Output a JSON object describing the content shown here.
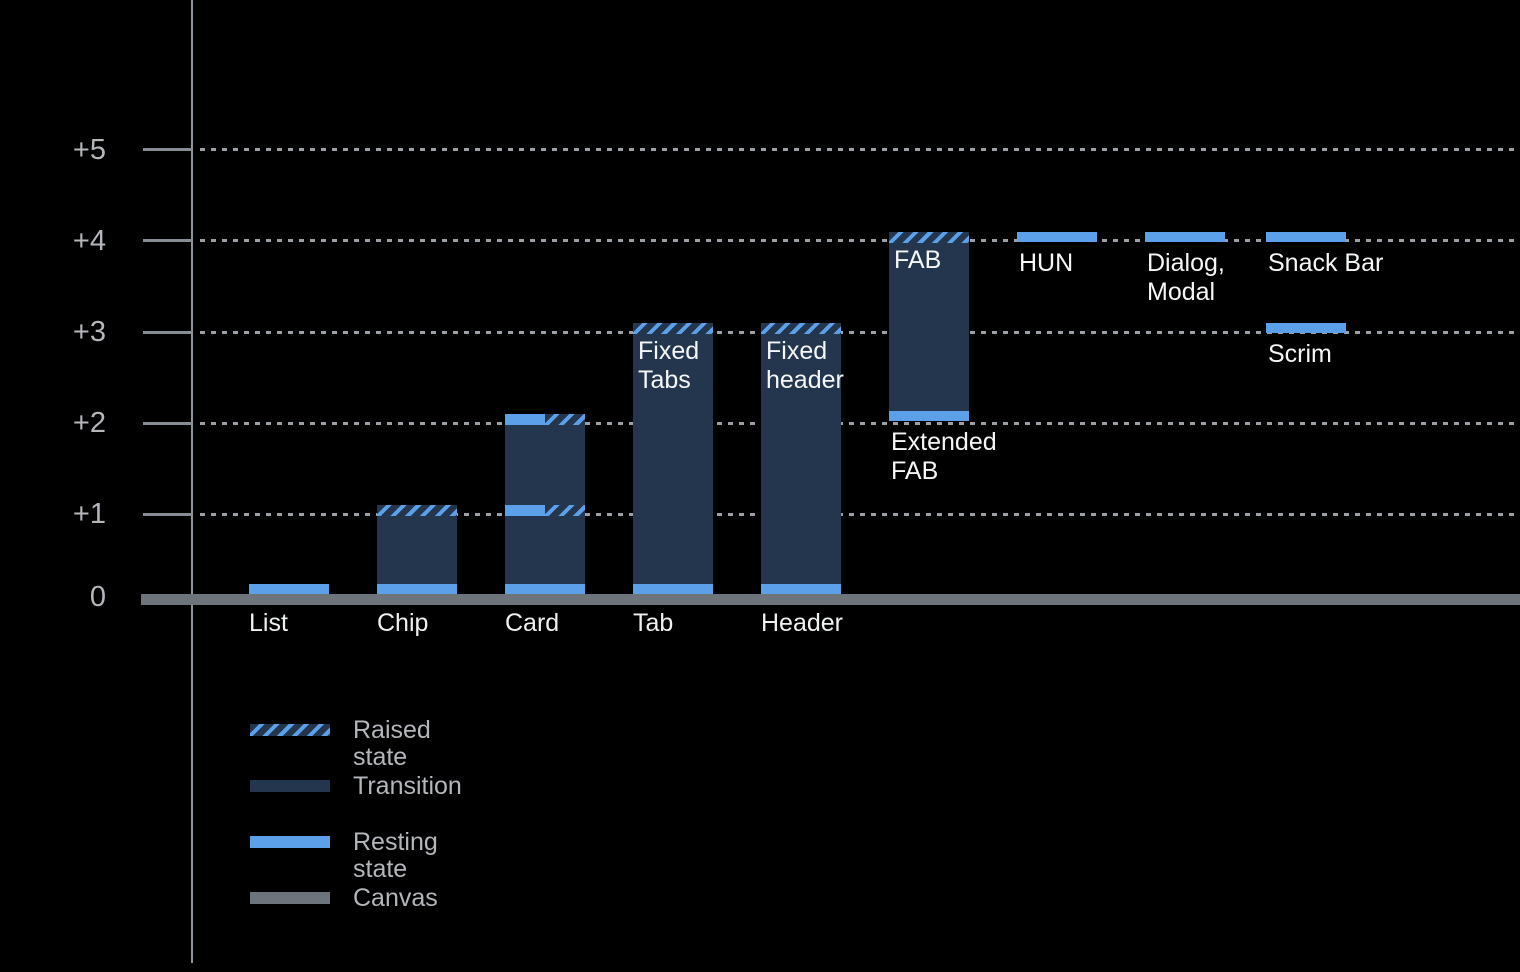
{
  "colors": {
    "background": "#000000",
    "resting_state": "#5ba0e9",
    "transition": "#24364e",
    "canvas": "#6e747c",
    "grid": "#9aa0a6",
    "axis_label_text": "#b3b6bb",
    "bar_label_text": "#f5f6f7"
  },
  "y_axis": {
    "ticks": [
      {
        "label": "+5",
        "level": 5
      },
      {
        "label": "+4",
        "level": 4
      },
      {
        "label": "+3",
        "level": 3
      },
      {
        "label": "+2",
        "level": 2
      },
      {
        "label": "+1",
        "level": 1
      },
      {
        "label": "0",
        "level": 0
      }
    ]
  },
  "legend": {
    "items": [
      {
        "label": "Raised state",
        "swatch": "raised",
        "swatch_class": "legend-swatch sw-raised"
      },
      {
        "label": "Transition",
        "swatch": "transition",
        "swatch_class": "legend-swatch sw-transition"
      },
      {
        "label": "Resting state",
        "swatch": "resting",
        "swatch_class": "legend-swatch sw-resting"
      },
      {
        "label": "Canvas",
        "swatch": "canvas",
        "swatch_class": "legend-swatch sw-canvas"
      }
    ]
  },
  "chart_data": {
    "type": "bar",
    "title": "",
    "xlabel": "",
    "ylabel": "",
    "ylim": [
      0,
      5.5
    ],
    "yticks": [
      "0",
      "+1",
      "+2",
      "+3",
      "+4",
      "+5"
    ],
    "grid": "horizontal dotted lines at +1 through +5; thick canvas baseline at 0",
    "legend_position": "bottom-left",
    "legend": [
      "Raised state",
      "Transition",
      "Resting state",
      "Canvas"
    ],
    "values": [
      {
        "component": "List",
        "resting": 0,
        "raised": null
      },
      {
        "component": "Chip",
        "resting": 0,
        "raised": 1
      },
      {
        "component": "Card",
        "resting": [
          0,
          1
        ],
        "raised": [
          1,
          2
        ]
      },
      {
        "component": "Tab (Fixed Tabs)",
        "resting": 0,
        "raised": 3
      },
      {
        "component": "Header (Fixed header)",
        "resting": 0,
        "raised": 3
      },
      {
        "component": "Extended FAB / FAB",
        "resting": 2,
        "raised": 4
      },
      {
        "component": "HUN",
        "resting": 4,
        "raised": null
      },
      {
        "component": "Dialog, Modal",
        "resting": 4,
        "raised": null
      },
      {
        "component": "Snack Bar",
        "resting": 4,
        "raised": null
      },
      {
        "component": "Scrim",
        "resting": 3,
        "raised": null
      }
    ],
    "columns": [
      {
        "category": "List",
        "bar": {
          "kind": "resting-only",
          "level": 0
        }
      },
      {
        "category": "Chip",
        "bar": {
          "kind": "elevated",
          "from": 0,
          "top": 1,
          "top_style": "raised"
        }
      },
      {
        "category": "Card",
        "bar": {
          "kind": "elevated",
          "from": 0,
          "top": 2,
          "top_style": "split",
          "mid_levels": [
            1
          ]
        }
      },
      {
        "category": "Tab",
        "inside_label": [
          "Fixed",
          "Tabs"
        ],
        "bar": {
          "kind": "elevated",
          "from": 0,
          "top": 3,
          "top_style": "raised"
        }
      },
      {
        "category": "Header",
        "inside_label": [
          "Fixed",
          "header"
        ],
        "bar": {
          "kind": "elevated",
          "from": 0,
          "top": 3,
          "top_style": "raised"
        }
      },
      {
        "inside_label": [
          "FAB"
        ],
        "below_label": [
          "Extended",
          "FAB"
        ],
        "bar": {
          "kind": "elevated",
          "from": 2,
          "top": 4,
          "top_style": "raised"
        }
      },
      {
        "floats": [
          {
            "level": 4,
            "label": [
              "HUN"
            ]
          }
        ]
      },
      {
        "floats": [
          {
            "level": 4,
            "label": [
              "Dialog,",
              "Modal"
            ]
          }
        ]
      },
      {
        "floats": [
          {
            "level": 4,
            "label": [
              "Snack Bar"
            ]
          },
          {
            "level": 3,
            "label": [
              "Scrim"
            ]
          }
        ]
      }
    ]
  }
}
